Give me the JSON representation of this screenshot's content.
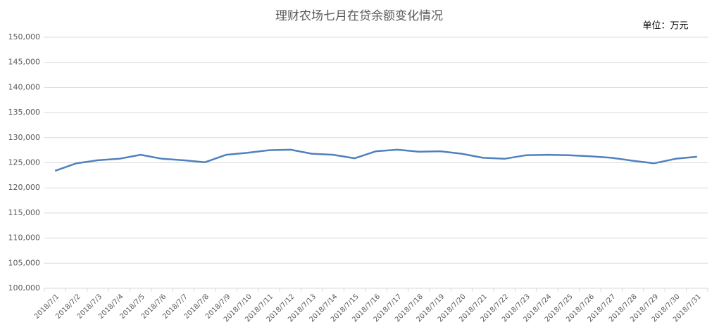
{
  "chart_data": {
    "type": "line",
    "title": "理财农场七月在贷余额变化情况",
    "unit": "单位：万元",
    "categories": [
      "2018/7/1",
      "2018/7/2",
      "2018/7/3",
      "2018/7/4",
      "2018/7/5",
      "2018/7/6",
      "2018/7/7",
      "2018/7/8",
      "2018/7/9",
      "2018/7/10",
      "2018/7/11",
      "2018/7/12",
      "2018/7/13",
      "2018/7/14",
      "2018/7/15",
      "2018/7/16",
      "2018/7/17",
      "2018/7/18",
      "2018/7/19",
      "2018/7/20",
      "2018/7/21",
      "2018/7/22",
      "2018/7/23",
      "2018/7/24",
      "2018/7/25",
      "2018/7/26",
      "2018/7/27",
      "2018/7/28",
      "2018/7/29",
      "2018/7/30",
      "2018/7/31"
    ],
    "values": [
      123400,
      124900,
      125500,
      125800,
      126600,
      125800,
      125500,
      125100,
      126600,
      127000,
      127500,
      127600,
      126800,
      126600,
      125900,
      127300,
      127600,
      127200,
      127300,
      126800,
      126000,
      125800,
      126500,
      126600,
      126500,
      126300,
      126000,
      125400,
      124900,
      125800,
      126200
    ],
    "color": "#4f81bd",
    "ylim": [
      100000,
      150000
    ],
    "yticks": [
      {
        "value": 100000,
        "label": "100,000"
      },
      {
        "value": 105000,
        "label": "105,000"
      },
      {
        "value": 110000,
        "label": "110,000"
      },
      {
        "value": 115000,
        "label": "115,000"
      },
      {
        "value": 120000,
        "label": "120,000"
      },
      {
        "value": 125000,
        "label": "125,000"
      },
      {
        "value": 130000,
        "label": "130,000"
      },
      {
        "value": 135000,
        "label": "135,000"
      },
      {
        "value": 140000,
        "label": "140,000"
      },
      {
        "value": 145000,
        "label": "145,000"
      },
      {
        "value": 150000,
        "label": "150,000"
      }
    ],
    "grid": true
  }
}
